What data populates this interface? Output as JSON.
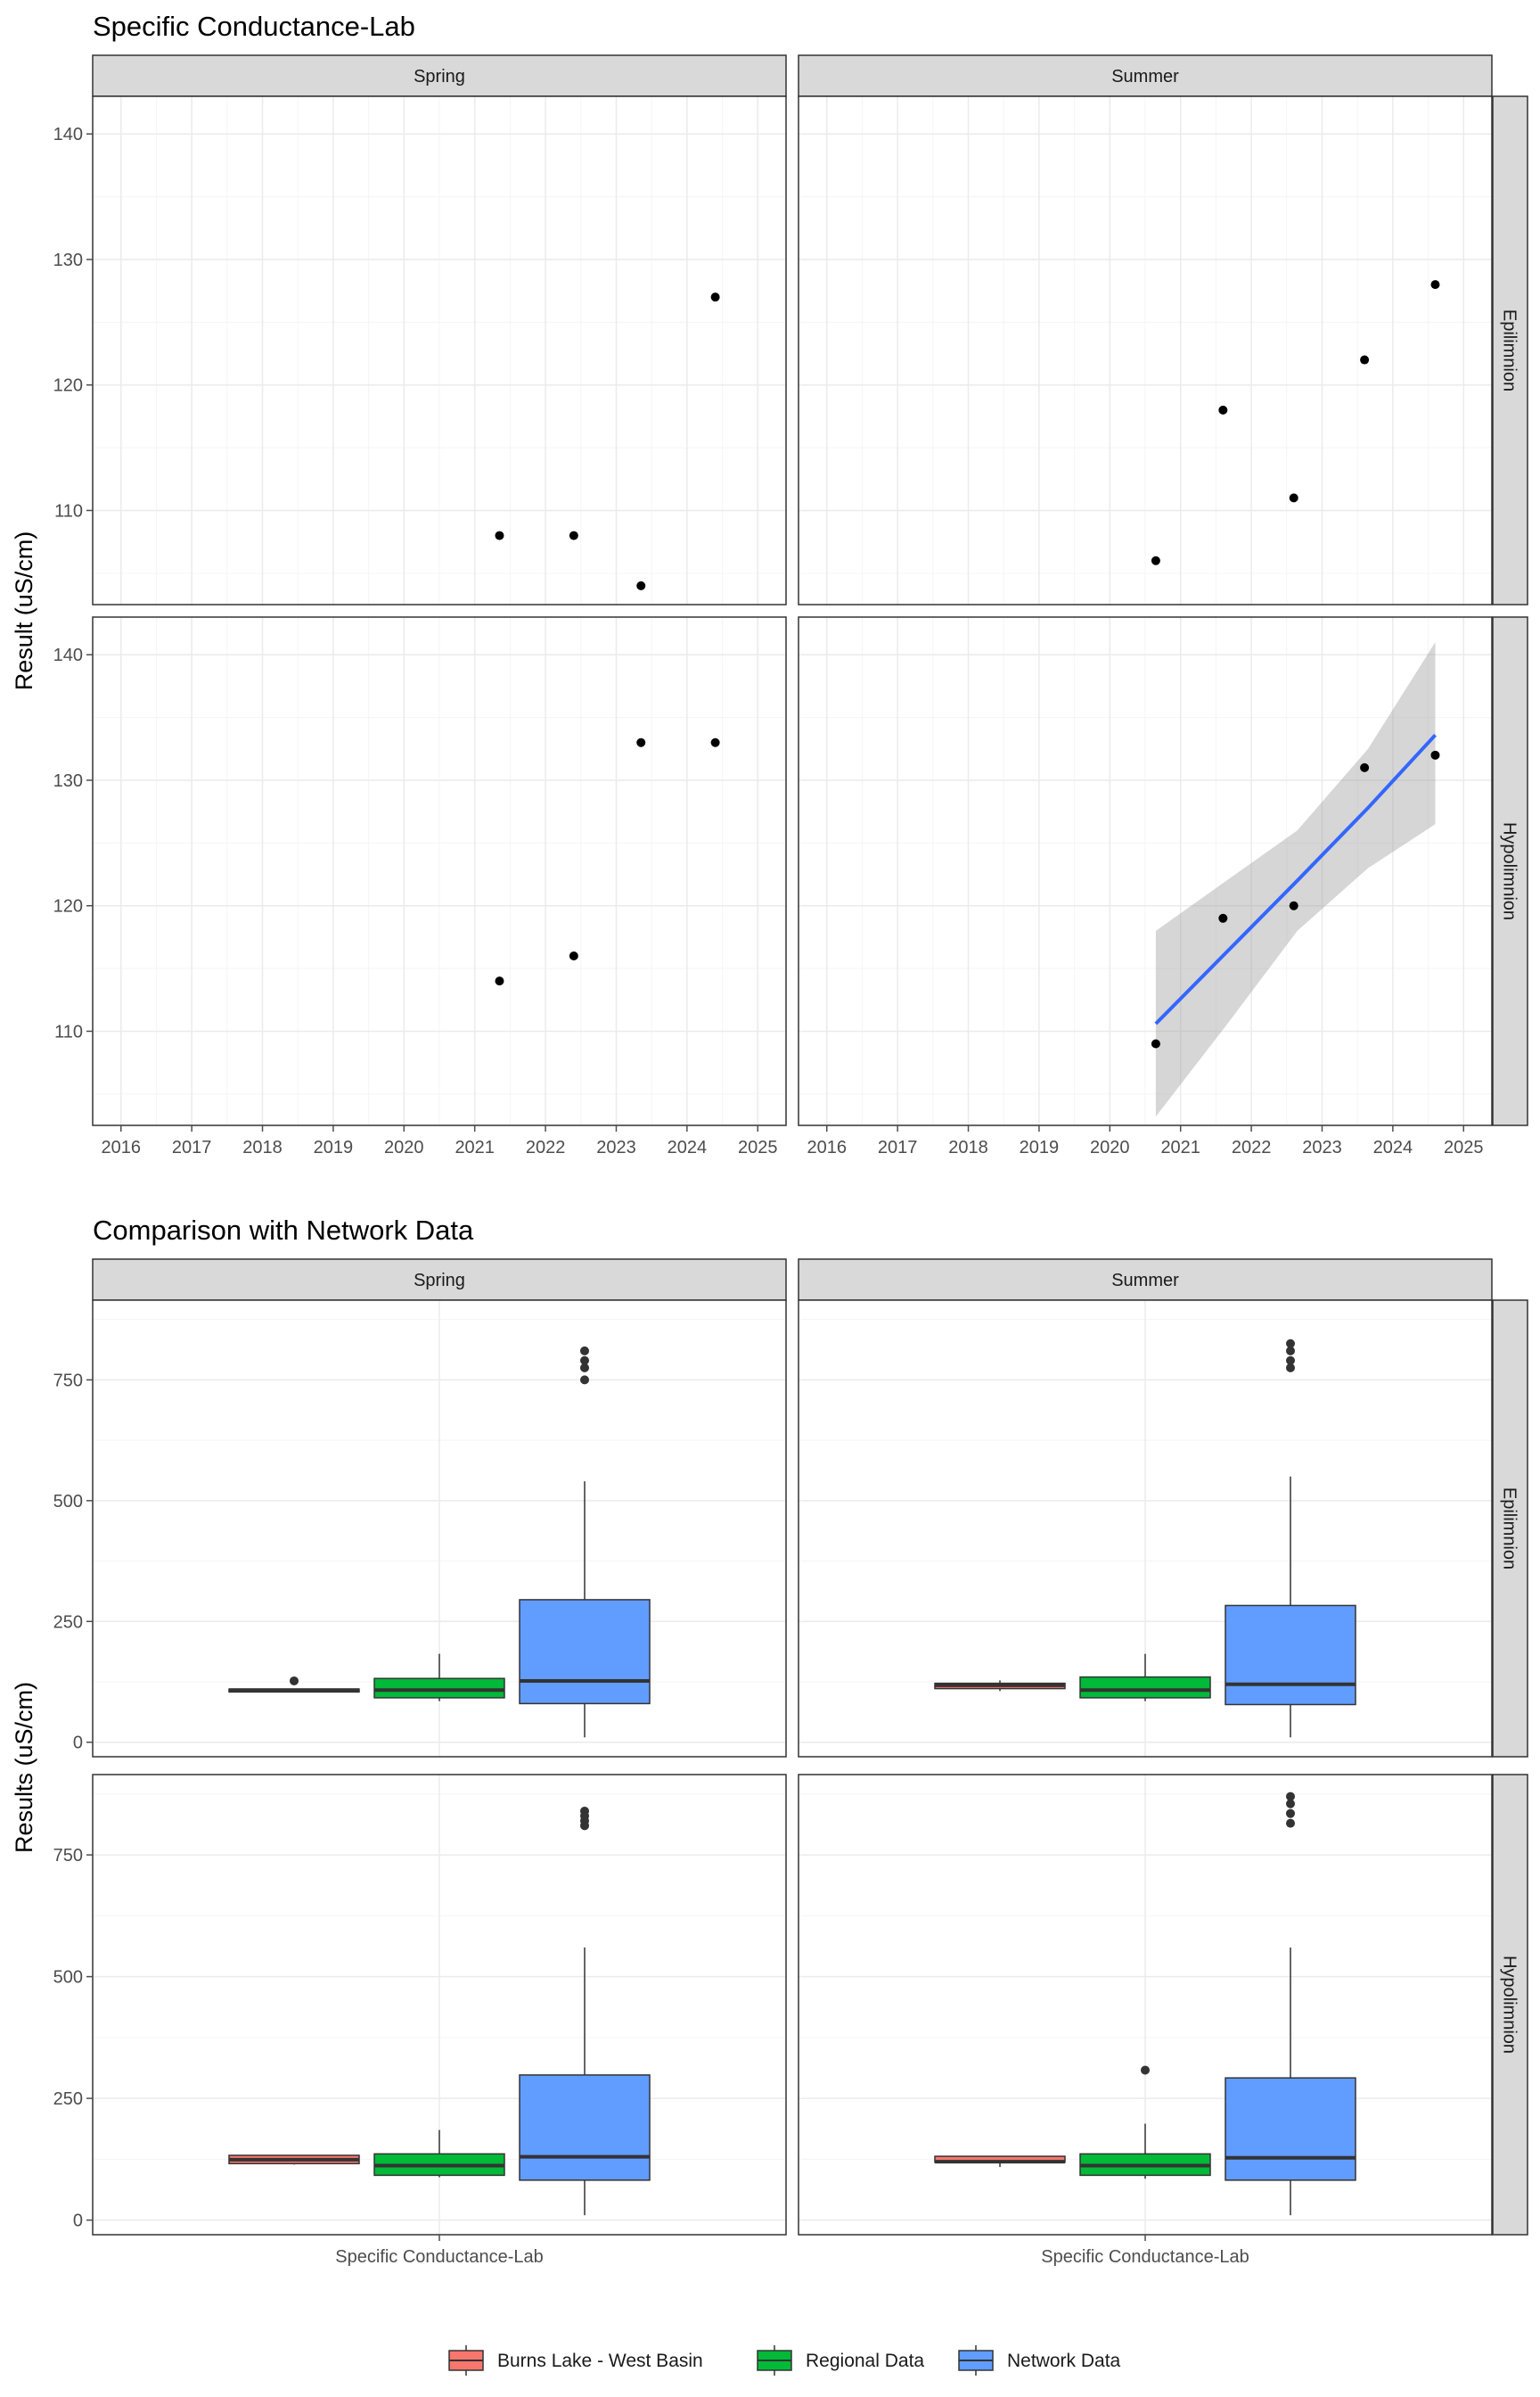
{
  "chart_data": [
    {
      "type": "scatter",
      "title": "Specific Conductance-Lab",
      "ylabel": "Result (uS/cm)",
      "xlabel": "",
      "columns": [
        "Spring",
        "Summer"
      ],
      "rows": [
        "Epilimnion",
        "Hypolimnion"
      ],
      "x_ticks": [
        "2016",
        "2017",
        "2018",
        "2019",
        "2020",
        "2021",
        "2022",
        "2023",
        "2024",
        "2025"
      ],
      "xlim": [
        2015.6,
        2025.4
      ],
      "y_ticks": [
        110,
        120,
        130,
        140
      ],
      "ylim": [
        102.5,
        143
      ],
      "grid": true,
      "panels": [
        {
          "column": "Spring",
          "row": "Epilimnion",
          "points": [
            {
              "x": 2021.35,
              "y": 108
            },
            {
              "x": 2022.4,
              "y": 108
            },
            {
              "x": 2023.35,
              "y": 104
            },
            {
              "x": 2024.4,
              "y": 127
            }
          ]
        },
        {
          "column": "Summer",
          "row": "Epilimnion",
          "points": [
            {
              "x": 2020.65,
              "y": 106
            },
            {
              "x": 2021.6,
              "y": 118
            },
            {
              "x": 2022.6,
              "y": 111
            },
            {
              "x": 2023.6,
              "y": 122
            },
            {
              "x": 2024.6,
              "y": 128
            }
          ]
        },
        {
          "column": "Spring",
          "row": "Hypolimnion",
          "points": [
            {
              "x": 2021.35,
              "y": 114
            },
            {
              "x": 2022.4,
              "y": 116
            },
            {
              "x": 2023.35,
              "y": 133
            },
            {
              "x": 2024.4,
              "y": 133
            }
          ]
        },
        {
          "column": "Summer",
          "row": "Hypolimnion",
          "points": [
            {
              "x": 2020.65,
              "y": 109
            },
            {
              "x": 2021.6,
              "y": 119
            },
            {
              "x": 2022.6,
              "y": 120
            },
            {
              "x": 2023.6,
              "y": 131
            },
            {
              "x": 2024.6,
              "y": 132
            }
          ],
          "trend": {
            "x": [
              2020.65,
              2021.65,
              2022.65,
              2023.65,
              2024.6
            ],
            "y": [
              110.6,
              116.3,
              122.0,
              127.8,
              133.6
            ],
            "lower": [
              103.2,
              110.5,
              118.0,
              123.0,
              126.5
            ],
            "upper": [
              118.0,
              122.0,
              126.0,
              132.5,
              141.0
            ],
            "line_color": "#3366FF",
            "band_color": "#999999"
          }
        }
      ]
    },
    {
      "type": "box",
      "title": "Comparison with Network Data",
      "ylabel": "Results (uS/cm)",
      "category": "Specific Conductance-Lab",
      "columns": [
        "Spring",
        "Summer"
      ],
      "rows": [
        "Epilimnion",
        "Hypolimnion"
      ],
      "y_ticks": [
        0,
        250,
        500,
        750
      ],
      "ylim": [
        -30,
        915
      ],
      "grid": true,
      "groups": [
        "Burns Lake - West Basin",
        "Regional Data",
        "Network Data"
      ],
      "colors": [
        "#F8766D",
        "#00BA38",
        "#619CFF"
      ],
      "legend_position": "bottom",
      "panels": [
        {
          "column": "Spring",
          "row": "Epilimnion",
          "boxes": [
            {
              "group": "Burns Lake - West Basin",
              "low": 104,
              "q1": 104,
              "median": 108,
              "q3": 110,
              "high": 110,
              "outliers": [
                127
              ]
            },
            {
              "group": "Regional Data",
              "low": 85,
              "q1": 92,
              "median": 108,
              "q3": 132,
              "high": 183,
              "outliers": []
            },
            {
              "group": "Network Data",
              "low": 10,
              "q1": 80,
              "median": 127,
              "q3": 295,
              "high": 540,
              "outliers": [
                750,
                775,
                790,
                810
              ]
            }
          ]
        },
        {
          "column": "Summer",
          "row": "Epilimnion",
          "boxes": [
            {
              "group": "Burns Lake - West Basin",
              "low": 106,
              "q1": 111,
              "median": 118,
              "q3": 122,
              "high": 128,
              "outliers": []
            },
            {
              "group": "Regional Data",
              "low": 85,
              "q1": 92,
              "median": 108,
              "q3": 135,
              "high": 183,
              "outliers": []
            },
            {
              "group": "Network Data",
              "low": 10,
              "q1": 78,
              "median": 120,
              "q3": 283,
              "high": 550,
              "outliers": [
                775,
                790,
                810,
                825
              ]
            }
          ]
        },
        {
          "column": "Spring",
          "row": "Hypolimnion",
          "boxes": [
            {
              "group": "Burns Lake - West Basin",
              "low": 114,
              "q1": 116,
              "median": 124,
              "q3": 133,
              "high": 133,
              "outliers": []
            },
            {
              "group": "Regional Data",
              "low": 88,
              "q1": 92,
              "median": 112,
              "q3": 136,
              "high": 185,
              "outliers": []
            },
            {
              "group": "Network Data",
              "low": 10,
              "q1": 82,
              "median": 130,
              "q3": 298,
              "high": 560,
              "outliers": [
                810,
                820,
                830,
                840
              ]
            }
          ]
        },
        {
          "column": "Summer",
          "row": "Hypolimnion",
          "boxes": [
            {
              "group": "Burns Lake - West Basin",
              "low": 109,
              "q1": 119,
              "median": 120,
              "q3": 131,
              "high": 132,
              "outliers": []
            },
            {
              "group": "Regional Data",
              "low": 85,
              "q1": 92,
              "median": 112,
              "q3": 136,
              "high": 198,
              "outliers": [
                308
              ]
            },
            {
              "group": "Network Data",
              "low": 10,
              "q1": 82,
              "median": 128,
              "q3": 292,
              "high": 560,
              "outliers": [
                815,
                835,
                855,
                870
              ]
            }
          ]
        }
      ]
    }
  ]
}
